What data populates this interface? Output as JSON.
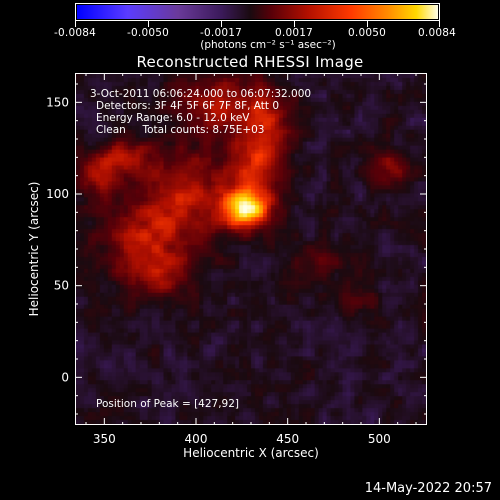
{
  "colorbar": {
    "ticks": [
      "-0.0084",
      "-0.0050",
      "-0.0017",
      "0.0017",
      "0.0050",
      "0.0084"
    ],
    "units": "(photons cm⁻² s⁻¹ asec⁻²)"
  },
  "title": "Reconstructed RHESSI Image",
  "info": {
    "time": "3-Oct-2011 06:06:24.000 to 06:07:32.000",
    "detectors": "Detectors: 3F 4F 5F 6F 7F 8F, Att 0",
    "energy": "Energy Range: 6.0 - 12.0 keV",
    "clean": "Clean     Total counts: 8.75E+03",
    "peak": "Position of Peak = [427,92]"
  },
  "footer": {
    "date": "14-May-2022 20:57"
  },
  "chart_data": {
    "type": "heatmap",
    "title": "Reconstructed RHESSI Image",
    "xlabel": "Heliocentric X (arcsec)",
    "ylabel": "Heliocentric Y (arcsec)",
    "xlim": [
      334,
      526
    ],
    "ylim": [
      -26,
      166
    ],
    "x_ticks": [
      350,
      400,
      450,
      500
    ],
    "y_ticks": [
      0,
      50,
      100,
      150
    ],
    "clim": [
      -0.0084,
      0.0084
    ],
    "colormap": [
      "#0000ff",
      "#5b3cff",
      "#6a3a9a",
      "#3b1a5a",
      "#1a0a10",
      "#5a0008",
      "#b31000",
      "#ff3a00",
      "#ff8a00",
      "#ffd800",
      "#ffffe8"
    ],
    "peak": [
      427,
      92
    ],
    "sources": [
      {
        "x": 427,
        "y": 92,
        "amp": 0.0084,
        "sx": 9,
        "sy": 7
      },
      {
        "x": 433,
        "y": 117,
        "amp": 0.0042,
        "sx": 10,
        "sy": 16
      },
      {
        "x": 395,
        "y": 104,
        "amp": 0.0034,
        "sx": 20,
        "sy": 15
      },
      {
        "x": 360,
        "y": 120,
        "amp": 0.0036,
        "sx": 9,
        "sy": 7
      },
      {
        "x": 375,
        "y": 77,
        "amp": 0.0033,
        "sx": 22,
        "sy": 15
      },
      {
        "x": 412,
        "y": 150,
        "amp": 0.0035,
        "sx": 15,
        "sy": 12
      },
      {
        "x": 440,
        "y": 145,
        "amp": 0.0028,
        "sx": 10,
        "sy": 12
      },
      {
        "x": 380,
        "y": 55,
        "amp": 0.0024,
        "sx": 14,
        "sy": 10
      },
      {
        "x": 505,
        "y": 115,
        "amp": 0.0025,
        "sx": 8,
        "sy": 8
      },
      {
        "x": 470,
        "y": 62,
        "amp": 0.0015,
        "sx": 12,
        "sy": 10
      },
      {
        "x": 490,
        "y": 40,
        "amp": 0.0012,
        "sx": 10,
        "sy": 8
      },
      {
        "x": 345,
        "y": 110,
        "amp": 0.003,
        "sx": 7,
        "sy": 8
      }
    ],
    "background": -0.0021
  }
}
